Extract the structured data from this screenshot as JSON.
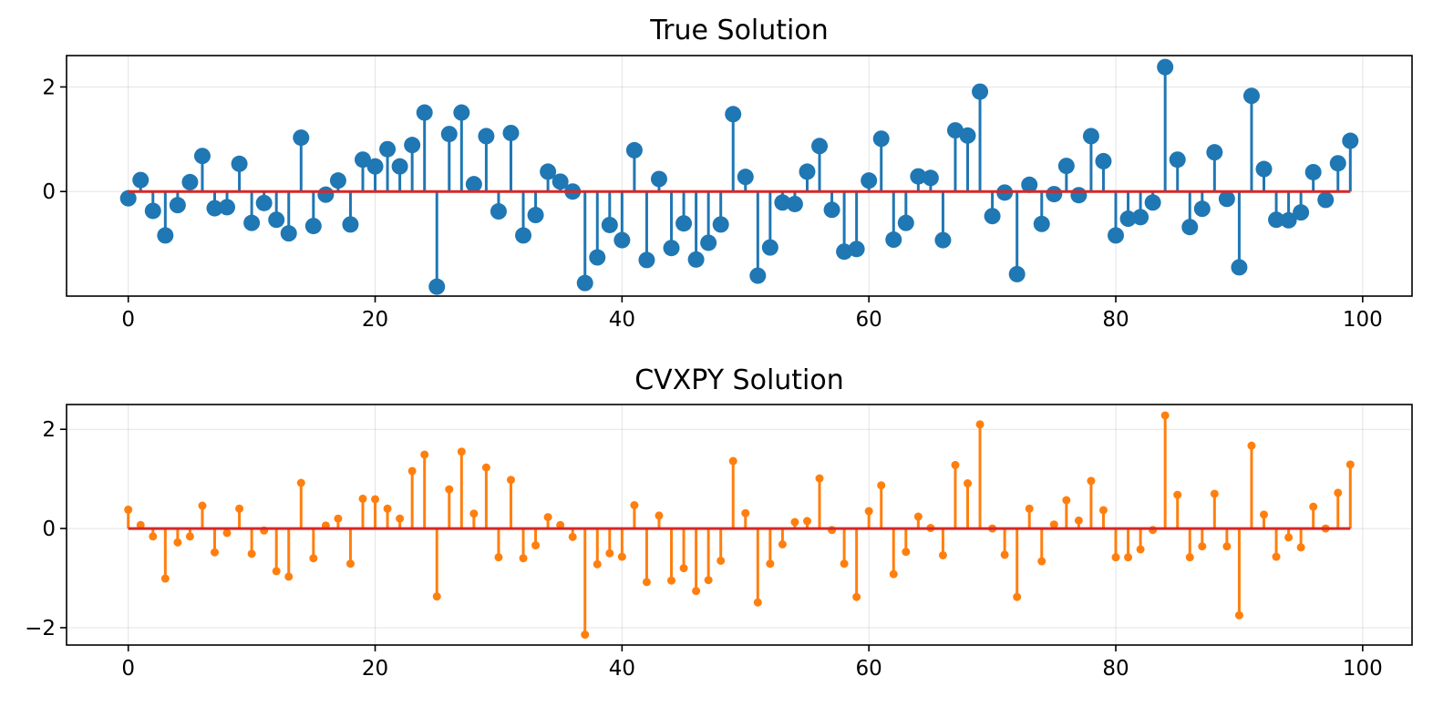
{
  "chart_data": [
    {
      "type": "stem",
      "title": "True Solution",
      "xlabel": "",
      "ylabel": "",
      "xlim": [
        -5,
        104
      ],
      "ylim": [
        -2.0,
        2.6
      ],
      "xticks": [
        0,
        20,
        40,
        60,
        80,
        100
      ],
      "yticks": [
        0,
        2
      ],
      "xtick_labels": [
        "0",
        "20",
        "40",
        "60",
        "80",
        "100"
      ],
      "ytick_labels": [
        "0",
        "2"
      ],
      "grid": true,
      "colors": {
        "stem": "#1f77b4",
        "baseline": "#d62728"
      },
      "marker": "large-circle",
      "x": [
        0,
        1,
        2,
        3,
        4,
        5,
        6,
        7,
        8,
        9,
        10,
        11,
        12,
        13,
        14,
        15,
        16,
        17,
        18,
        19,
        20,
        21,
        22,
        23,
        24,
        25,
        26,
        27,
        28,
        29,
        30,
        31,
        32,
        33,
        34,
        35,
        36,
        37,
        38,
        39,
        40,
        41,
        42,
        43,
        44,
        45,
        46,
        47,
        48,
        49,
        50,
        51,
        52,
        53,
        54,
        55,
        56,
        57,
        58,
        59,
        60,
        61,
        62,
        63,
        64,
        65,
        66,
        67,
        68,
        69,
        70,
        71,
        72,
        73,
        74,
        75,
        76,
        77,
        78,
        79,
        80,
        81,
        82,
        83,
        84,
        85,
        86,
        87,
        88,
        89,
        90,
        91,
        92,
        93,
        94,
        95,
        96,
        97,
        98,
        99
      ],
      "values": [
        -0.13,
        0.22,
        -0.37,
        -0.84,
        -0.26,
        0.18,
        0.68,
        -0.32,
        -0.3,
        0.53,
        -0.6,
        -0.22,
        -0.54,
        -0.8,
        1.03,
        -0.66,
        -0.06,
        0.21,
        -0.63,
        0.61,
        0.48,
        0.81,
        0.48,
        0.89,
        1.51,
        -1.82,
        1.1,
        1.51,
        0.14,
        1.06,
        -0.38,
        1.12,
        -0.84,
        -0.45,
        0.38,
        0.19,
        0.0,
        -1.75,
        -1.26,
        -0.64,
        -0.93,
        0.79,
        -1.31,
        0.24,
        -1.08,
        -0.61,
        -1.3,
        -0.98,
        -0.63,
        1.48,
        0.28,
        -1.61,
        -1.07,
        -0.21,
        -0.24,
        0.38,
        0.87,
        -0.35,
        -1.15,
        -1.1,
        0.21,
        1.01,
        -0.92,
        -0.6,
        0.29,
        0.26,
        -0.93,
        1.17,
        1.07,
        1.91,
        -0.47,
        -0.02,
        -1.58,
        0.13,
        -0.62,
        -0.05,
        0.49,
        -0.07,
        1.06,
        0.58,
        -0.84,
        -0.52,
        -0.49,
        -0.21,
        2.38,
        0.61,
        -0.68,
        -0.33,
        0.75,
        -0.14,
        -1.45,
        1.83,
        0.43,
        -0.54,
        -0.55,
        -0.4,
        0.37,
        -0.16,
        0.54,
        0.97
      ]
    },
    {
      "type": "stem",
      "title": "CVXPY Solution",
      "xlabel": "",
      "ylabel": "",
      "xlim": [
        -5,
        104
      ],
      "ylim": [
        -2.35,
        2.5
      ],
      "xticks": [
        0,
        20,
        40,
        60,
        80,
        100
      ],
      "yticks": [
        -2,
        0,
        2
      ],
      "xtick_labels": [
        "0",
        "20",
        "40",
        "60",
        "80",
        "100"
      ],
      "ytick_labels": [
        "−2",
        "0",
        "2"
      ],
      "grid": true,
      "colors": {
        "stem": "#ff7f0e",
        "baseline": "#d62728"
      },
      "marker": "small-circle",
      "x": [
        0,
        1,
        2,
        3,
        4,
        5,
        6,
        7,
        8,
        9,
        10,
        11,
        12,
        13,
        14,
        15,
        16,
        17,
        18,
        19,
        20,
        21,
        22,
        23,
        24,
        25,
        26,
        27,
        28,
        29,
        30,
        31,
        32,
        33,
        34,
        35,
        36,
        37,
        38,
        39,
        40,
        41,
        42,
        43,
        44,
        45,
        46,
        47,
        48,
        49,
        50,
        51,
        52,
        53,
        54,
        55,
        56,
        57,
        58,
        59,
        60,
        61,
        62,
        63,
        64,
        65,
        66,
        67,
        68,
        69,
        70,
        71,
        72,
        73,
        74,
        75,
        76,
        77,
        78,
        79,
        80,
        81,
        82,
        83,
        84,
        85,
        86,
        87,
        88,
        89,
        90,
        91,
        92,
        93,
        94,
        95,
        96,
        97,
        98,
        99
      ],
      "values": [
        0.38,
        0.07,
        -0.16,
        -1.01,
        -0.28,
        -0.16,
        0.46,
        -0.48,
        -0.09,
        0.4,
        -0.51,
        -0.04,
        -0.86,
        -0.97,
        0.92,
        -0.6,
        0.06,
        0.2,
        -0.71,
        0.6,
        0.59,
        0.4,
        0.2,
        1.16,
        1.49,
        -1.37,
        0.79,
        1.55,
        0.3,
        1.23,
        -0.58,
        0.98,
        -0.6,
        -0.34,
        0.23,
        0.07,
        -0.17,
        -2.14,
        -0.72,
        -0.5,
        -0.57,
        0.47,
        -1.08,
        0.26,
        -1.05,
        -0.8,
        -1.26,
        -1.04,
        -0.65,
        1.36,
        0.31,
        -1.49,
        -0.71,
        -0.32,
        0.13,
        0.15,
        1.01,
        -0.03,
        -0.71,
        -1.38,
        0.35,
        0.87,
        -0.92,
        -0.47,
        0.24,
        0.01,
        -0.54,
        1.28,
        0.91,
        2.1,
        0.0,
        -0.53,
        -1.38,
        0.4,
        -0.66,
        0.08,
        0.57,
        0.16,
        0.96,
        0.37,
        -0.58,
        -0.58,
        -0.42,
        -0.03,
        2.28,
        0.68,
        -0.58,
        -0.36,
        0.7,
        -0.36,
        -1.75,
        1.67,
        0.28,
        -0.57,
        -0.18,
        -0.38,
        0.44,
        0.0,
        0.72,
        1.29
      ]
    }
  ]
}
